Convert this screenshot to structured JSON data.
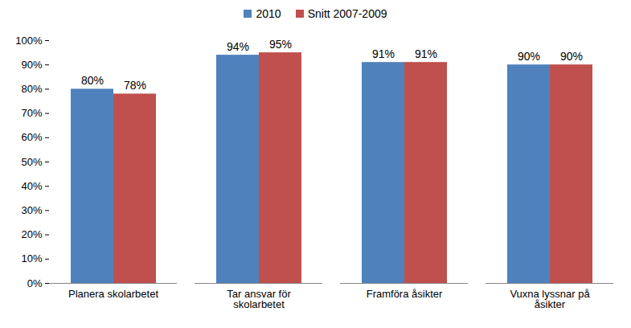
{
  "chart_data": {
    "type": "bar",
    "categories": [
      "Planera skolarbetet",
      "Tar ansvar för skolarbetet",
      "Framföra åsikter",
      "Vuxna lyssnar på åsikter"
    ],
    "series": [
      {
        "name": "2010",
        "color": "#4f81bd",
        "values": [
          80,
          94,
          91,
          90
        ],
        "value_labels": [
          "80%",
          "94%",
          "91%",
          "90%"
        ]
      },
      {
        "name": "Snitt 2007-2009",
        "color": "#c0504d",
        "values": [
          78,
          95,
          91,
          90
        ],
        "value_labels": [
          "78%",
          "95%",
          "91%",
          "90%"
        ]
      }
    ],
    "ylim": [
      0,
      100
    ],
    "yticks": [
      {
        "value": 0,
        "label": "0%"
      },
      {
        "value": 10,
        "label": "10%"
      },
      {
        "value": 20,
        "label": "20%"
      },
      {
        "value": 30,
        "label": "30%"
      },
      {
        "value": 40,
        "label": "40%"
      },
      {
        "value": 50,
        "label": "50%"
      },
      {
        "value": 60,
        "label": "60%"
      },
      {
        "value": 70,
        "label": "70%"
      },
      {
        "value": 80,
        "label": "80%"
      },
      {
        "value": 90,
        "label": "90%"
      },
      {
        "value": 100,
        "label": "100%"
      }
    ],
    "grid": false,
    "legend": "top",
    "data_labels": true
  }
}
